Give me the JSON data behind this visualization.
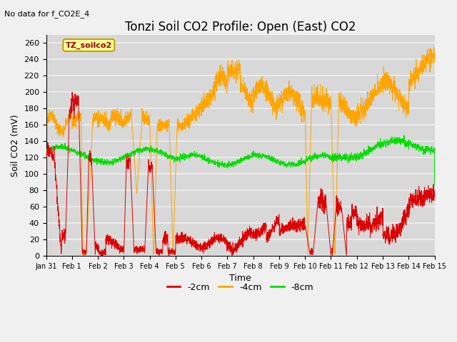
{
  "title": "Tonzi Soil CO2 Profile: Open (East) CO2",
  "subtitle": "No data for f_CO2E_4",
  "ylabel": "Soil CO2 (mV)",
  "xlabel": "Time",
  "legend_label": "TZ_soilco2",
  "series_labels": [
    "-2cm",
    "-4cm",
    "-8cm"
  ],
  "series_colors": [
    "#dd0000",
    "#ffa500",
    "#00dd00"
  ],
  "ylim": [
    0,
    270
  ],
  "yticks": [
    0,
    20,
    40,
    60,
    80,
    100,
    120,
    140,
    160,
    180,
    200,
    220,
    240,
    260
  ],
  "xlim_days": [
    0,
    15
  ],
  "xtick_labels": [
    "Jan 31",
    "Feb 1",
    "Feb 2",
    "Feb 3",
    "Feb 4",
    "Feb 5",
    "Feb 6",
    "Feb 7",
    "Feb 8",
    "Feb 9",
    "Feb 10",
    "Feb 11",
    "Feb 12",
    "Feb 13",
    "Feb 14",
    "Feb 15"
  ],
  "background_color": "#f0f0f0",
  "plot_bg_color": "#d8d8d8",
  "grid_color": "#f0f0f0",
  "legend_box_color": "#ffff99",
  "legend_box_edge": "#c8a000",
  "title_fontsize": 12,
  "axis_fontsize": 9,
  "tick_fontsize": 8,
  "linewidth": 0.7
}
